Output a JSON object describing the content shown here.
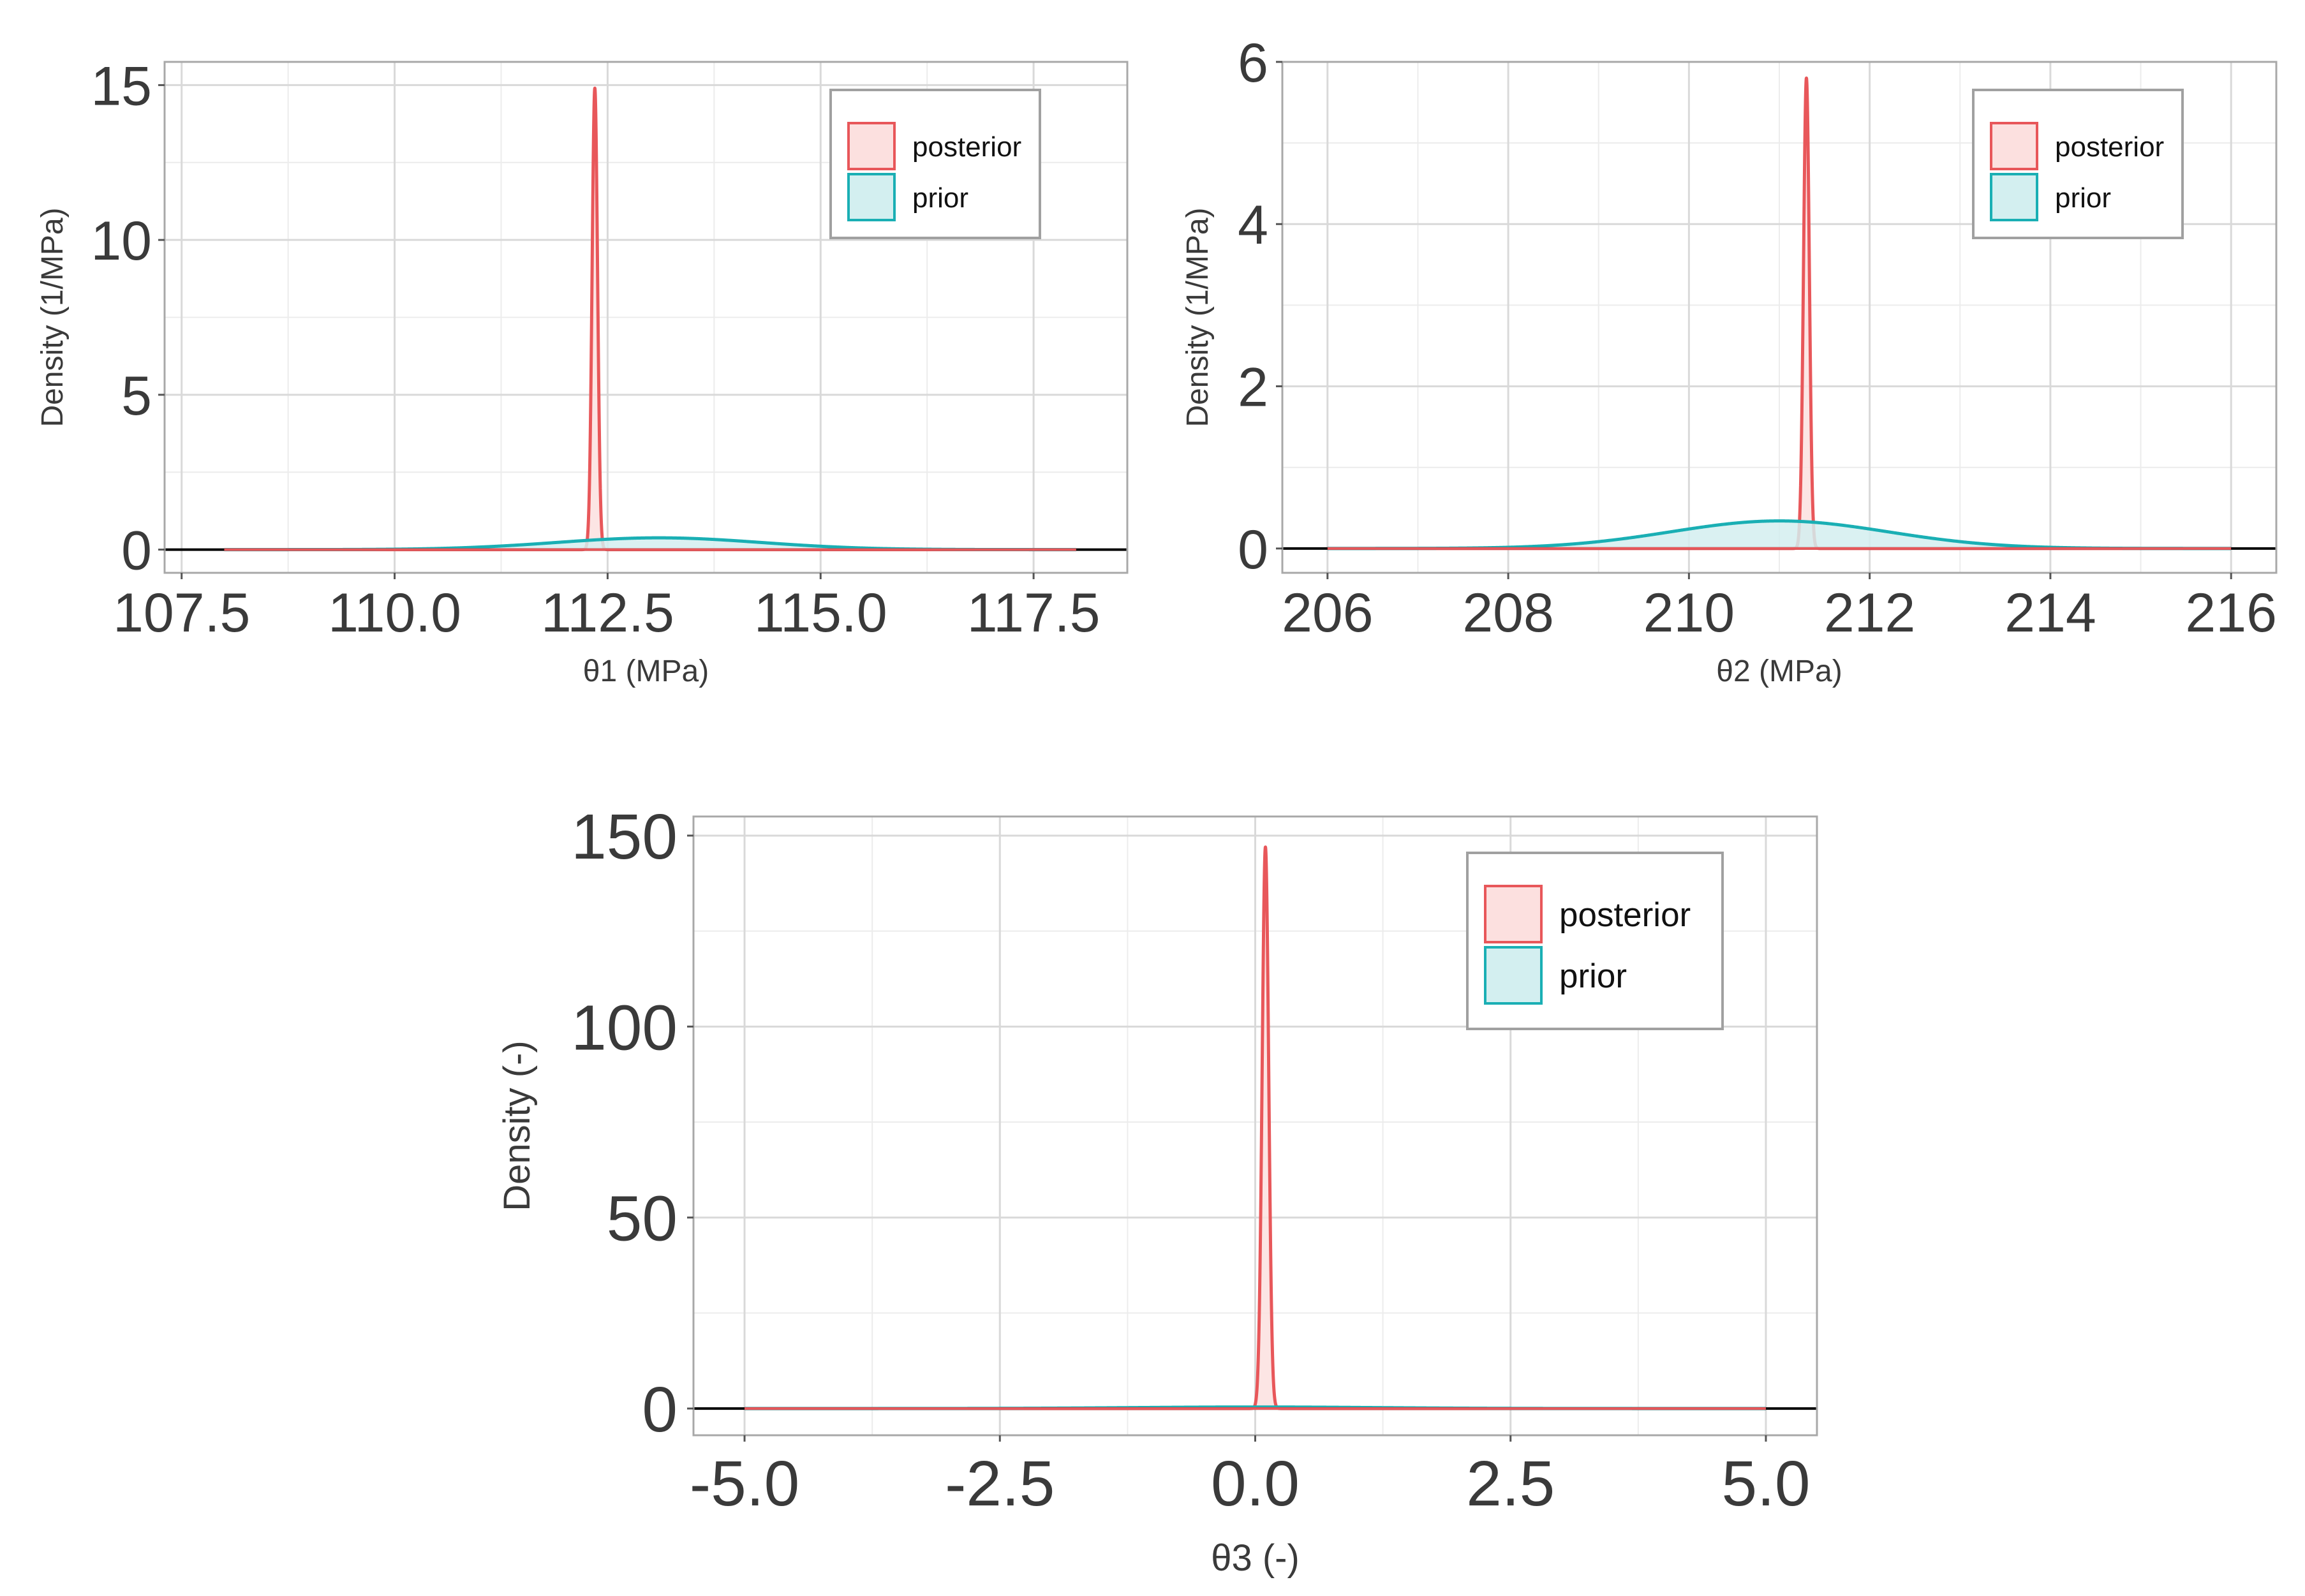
{
  "colors": {
    "posterior_line": "#e8575a",
    "posterior_fill": "#fce0df",
    "prior_line": "#1aafb4",
    "prior_fill": "#d3eff0",
    "grid_major": "#d9d9d9",
    "grid_minor": "#ececec",
    "panel_border": "#a8a8a8",
    "baseline": "#000000"
  },
  "chart_data": [
    {
      "id": "theta1",
      "type": "area",
      "xlabel": "θ1 (MPa)",
      "ylabel": "Density (1/MPa)",
      "xlim": [
        107.3,
        118.6
      ],
      "ylim": [
        -0.75,
        15.75
      ],
      "xticks": [
        107.5,
        110.0,
        112.5,
        115.0,
        117.5
      ],
      "xtick_labels": [
        "107.5",
        "110.0",
        "112.5",
        "115.0",
        "117.5"
      ],
      "yticks": [
        0,
        5,
        10,
        15
      ],
      "ytick_labels": [
        "0",
        "5",
        "10",
        "15"
      ],
      "legend": [
        "posterior",
        "prior"
      ],
      "legend_position": "top-right",
      "series": [
        {
          "name": "posterior",
          "distribution": "normal",
          "mean": 112.35,
          "peak": 14.9,
          "range": [
            108.0,
            118.0
          ]
        },
        {
          "name": "prior",
          "distribution": "normal",
          "mean": 113.1,
          "peak": 0.38,
          "range": [
            108.0,
            118.0
          ]
        }
      ]
    },
    {
      "id": "theta2",
      "type": "area",
      "xlabel": "θ2 (MPa)",
      "ylabel": "Density (1/MPa)",
      "xlim": [
        205.5,
        216.5
      ],
      "ylim": [
        -0.3,
        6.0
      ],
      "xticks": [
        206,
        208,
        210,
        212,
        214,
        216
      ],
      "xtick_labels": [
        "206",
        "208",
        "210",
        "212",
        "214",
        "216"
      ],
      "yticks": [
        0,
        2,
        4,
        6
      ],
      "ytick_labels": [
        "0",
        "2",
        "4",
        "6"
      ],
      "legend": [
        "posterior",
        "prior"
      ],
      "legend_position": "top-right",
      "series": [
        {
          "name": "posterior",
          "distribution": "normal",
          "mean": 211.3,
          "peak": 5.8,
          "range": [
            206.0,
            216.0
          ]
        },
        {
          "name": "prior",
          "distribution": "normal",
          "mean": 211.0,
          "peak": 0.34,
          "range": [
            206.0,
            216.0
          ]
        }
      ]
    },
    {
      "id": "theta3",
      "type": "area",
      "xlabel": "θ3 (-)",
      "ylabel": "Density (-)",
      "xlim": [
        -5.5,
        5.5
      ],
      "ylim": [
        -7,
        155
      ],
      "xticks": [
        -5.0,
        -2.5,
        0.0,
        2.5,
        5.0
      ],
      "xtick_labels": [
        "-5.0",
        "-2.5",
        "0.0",
        "2.5",
        "5.0"
      ],
      "yticks": [
        0,
        50,
        100,
        150
      ],
      "ytick_labels": [
        "0",
        "50",
        "100",
        "150"
      ],
      "legend": [
        "posterior",
        "prior"
      ],
      "legend_position": "top-right",
      "series": [
        {
          "name": "posterior",
          "distribution": "normal",
          "mean": 0.1,
          "peak": 147.0,
          "range": [
            -5.0,
            5.0
          ]
        },
        {
          "name": "prior",
          "distribution": "normal",
          "mean": 0.0,
          "peak": 0.4,
          "range": [
            -5.0,
            5.0
          ]
        }
      ]
    }
  ]
}
